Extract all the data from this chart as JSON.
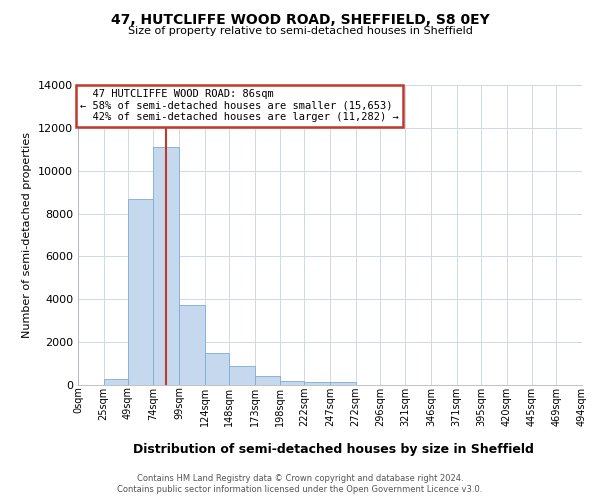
{
  "title_line1": "47, HUTCLIFFE WOOD ROAD, SHEFFIELD, S8 0EY",
  "title_line2": "Size of property relative to semi-detached houses in Sheffield",
  "xlabel": "Distribution of semi-detached houses by size in Sheffield",
  "ylabel": "Number of semi-detached properties",
  "footnote1": "Contains HM Land Registry data © Crown copyright and database right 2024.",
  "footnote2": "Contains public sector information licensed under the Open Government Licence v3.0.",
  "property_size": 86,
  "property_label": "47 HUTCLIFFE WOOD ROAD: 86sqm",
  "pct_smaller": 58,
  "pct_smaller_n": 15653,
  "pct_larger": 42,
  "pct_larger_n": 11282,
  "bin_edges": [
    0,
    25,
    49,
    74,
    99,
    124,
    148,
    173,
    198,
    222,
    247,
    272,
    296,
    321,
    346,
    371,
    395,
    420,
    445,
    469,
    494
  ],
  "bin_labels": [
    "0sqm",
    "25sqm",
    "49sqm",
    "74sqm",
    "99sqm",
    "124sqm",
    "148sqm",
    "173sqm",
    "198sqm",
    "222sqm",
    "247sqm",
    "272sqm",
    "296sqm",
    "321sqm",
    "346sqm",
    "371sqm",
    "395sqm",
    "420sqm",
    "445sqm",
    "469sqm",
    "494sqm"
  ],
  "bar_heights": [
    0,
    300,
    8700,
    11100,
    3750,
    1500,
    900,
    400,
    200,
    130,
    130,
    0,
    0,
    0,
    0,
    0,
    0,
    0,
    0,
    0
  ],
  "bar_color": "#c5d8ee",
  "bar_edge_color": "#7aaed4",
  "property_line_color": "#c0392b",
  "annotation_box_color": "#c0392b",
  "ylim": [
    0,
    14000
  ],
  "yticks": [
    0,
    2000,
    4000,
    6000,
    8000,
    10000,
    12000,
    14000
  ],
  "background_color": "#ffffff",
  "grid_color": "#d0d8e8"
}
